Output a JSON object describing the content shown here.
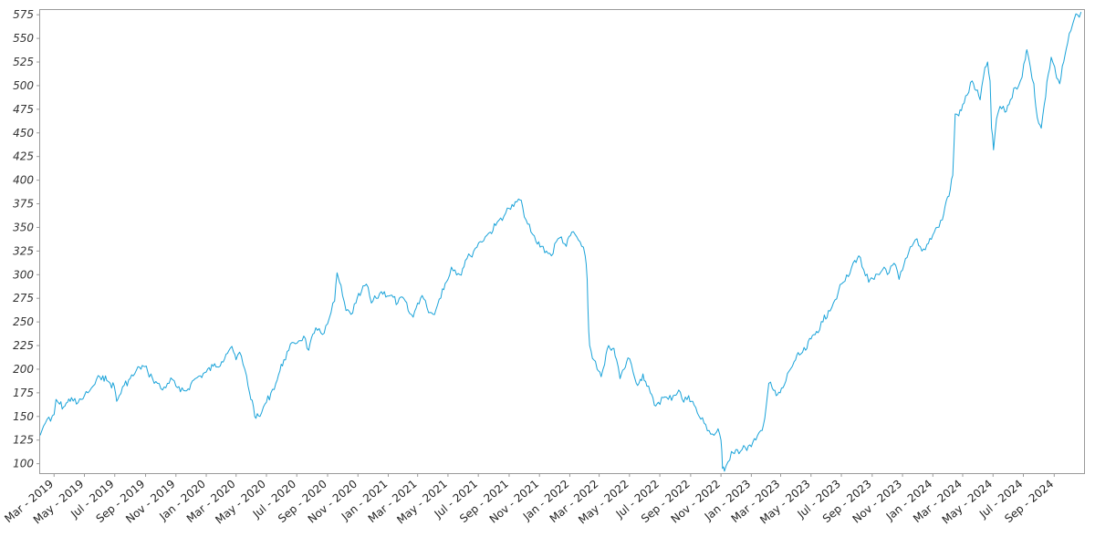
{
  "chart_data": {
    "type": "line",
    "title": "",
    "xlabel": "",
    "ylabel": "",
    "grid": false,
    "legend": "none",
    "line_color": "#1aa3d9",
    "x_range": [
      "2019-02-01",
      "2024-10-31"
    ],
    "ylim": [
      90,
      580
    ],
    "y_ticks": [
      100,
      125,
      150,
      175,
      200,
      225,
      250,
      275,
      300,
      325,
      350,
      375,
      400,
      425,
      450,
      475,
      500,
      525,
      550,
      575
    ],
    "x_ticks": [
      {
        "date": "2019-03-01",
        "label": "Mar - 2019"
      },
      {
        "date": "2019-05-01",
        "label": "May - 2019"
      },
      {
        "date": "2019-07-01",
        "label": "Jul - 2019"
      },
      {
        "date": "2019-09-01",
        "label": "Sep - 2019"
      },
      {
        "date": "2019-11-01",
        "label": "Nov - 2019"
      },
      {
        "date": "2020-01-01",
        "label": "Jan - 2020"
      },
      {
        "date": "2020-03-01",
        "label": "Mar - 2020"
      },
      {
        "date": "2020-05-01",
        "label": "May - 2020"
      },
      {
        "date": "2020-07-01",
        "label": "Jul - 2020"
      },
      {
        "date": "2020-09-01",
        "label": "Sep - 2020"
      },
      {
        "date": "2020-11-01",
        "label": "Nov - 2020"
      },
      {
        "date": "2021-01-01",
        "label": "Jan - 2021"
      },
      {
        "date": "2021-03-01",
        "label": "Mar - 2021"
      },
      {
        "date": "2021-05-01",
        "label": "May - 2021"
      },
      {
        "date": "2021-07-01",
        "label": "Jul - 2021"
      },
      {
        "date": "2021-09-01",
        "label": "Sep - 2021"
      },
      {
        "date": "2021-11-01",
        "label": "Nov - 2021"
      },
      {
        "date": "2022-01-01",
        "label": "Jan - 2022"
      },
      {
        "date": "2022-03-01",
        "label": "Mar - 2022"
      },
      {
        "date": "2022-05-01",
        "label": "May - 2022"
      },
      {
        "date": "2022-07-01",
        "label": "Jul - 2022"
      },
      {
        "date": "2022-09-01",
        "label": "Sep - 2022"
      },
      {
        "date": "2022-11-01",
        "label": "Nov - 2022"
      },
      {
        "date": "2023-01-01",
        "label": "Jan - 2023"
      },
      {
        "date": "2023-03-01",
        "label": "Mar - 2023"
      },
      {
        "date": "2023-05-01",
        "label": "May - 2023"
      },
      {
        "date": "2023-07-01",
        "label": "Jul - 2023"
      },
      {
        "date": "2023-09-01",
        "label": "Sep - 2023"
      },
      {
        "date": "2023-11-01",
        "label": "Nov - 2023"
      },
      {
        "date": "2024-01-01",
        "label": "Jan - 2024"
      },
      {
        "date": "2024-03-01",
        "label": "Mar - 2024"
      },
      {
        "date": "2024-05-01",
        "label": "May - 2024"
      },
      {
        "date": "2024-07-01",
        "label": "Jul - 2024"
      },
      {
        "date": "2024-09-01",
        "label": "Sep - 2024"
      }
    ],
    "series": [
      {
        "points": [
          [
            "2019-02-01",
            130
          ],
          [
            "2019-02-08",
            140
          ],
          [
            "2019-02-15",
            147
          ],
          [
            "2019-02-22",
            145
          ],
          [
            "2019-03-01",
            152
          ],
          [
            "2019-03-05",
            168
          ],
          [
            "2019-03-12",
            163
          ],
          [
            "2019-03-20",
            160
          ],
          [
            "2019-03-28",
            165
          ],
          [
            "2019-04-05",
            170
          ],
          [
            "2019-04-15",
            163
          ],
          [
            "2019-04-25",
            168
          ],
          [
            "2019-05-01",
            172
          ],
          [
            "2019-05-08",
            175
          ],
          [
            "2019-05-15",
            180
          ],
          [
            "2019-05-22",
            184
          ],
          [
            "2019-06-01",
            192
          ],
          [
            "2019-06-07",
            193
          ],
          [
            "2019-06-15",
            188
          ],
          [
            "2019-06-22",
            185
          ],
          [
            "2019-06-30",
            182
          ],
          [
            "2019-07-05",
            166
          ],
          [
            "2019-07-10",
            172
          ],
          [
            "2019-07-20",
            183
          ],
          [
            "2019-08-01",
            190
          ],
          [
            "2019-08-10",
            195
          ],
          [
            "2019-08-20",
            202
          ],
          [
            "2019-08-28",
            203
          ],
          [
            "2019-09-05",
            198
          ],
          [
            "2019-09-15",
            190
          ],
          [
            "2019-09-25",
            185
          ],
          [
            "2019-10-05",
            178
          ],
          [
            "2019-10-15",
            185
          ],
          [
            "2019-10-25",
            189
          ],
          [
            "2019-11-01",
            182
          ],
          [
            "2019-11-10",
            176
          ],
          [
            "2019-11-20",
            177
          ],
          [
            "2019-12-01",
            184
          ],
          [
            "2019-12-10",
            190
          ],
          [
            "2019-12-20",
            193
          ],
          [
            "2020-01-01",
            197
          ],
          [
            "2020-01-15",
            203
          ],
          [
            "2020-02-01",
            208
          ],
          [
            "2020-02-10",
            216
          ],
          [
            "2020-02-18",
            222
          ],
          [
            "2020-02-25",
            218
          ],
          [
            "2020-03-01",
            210
          ],
          [
            "2020-03-08",
            218
          ],
          [
            "2020-03-15",
            205
          ],
          [
            "2020-03-22",
            193
          ],
          [
            "2020-03-28",
            175
          ],
          [
            "2020-04-05",
            160
          ],
          [
            "2020-04-10",
            148
          ],
          [
            "2020-04-18",
            150
          ],
          [
            "2020-04-25",
            160
          ],
          [
            "2020-05-01",
            165
          ],
          [
            "2020-05-10",
            175
          ],
          [
            "2020-05-20",
            185
          ],
          [
            "2020-05-28",
            198
          ],
          [
            "2020-06-05",
            210
          ],
          [
            "2020-06-15",
            220
          ],
          [
            "2020-06-25",
            228
          ],
          [
            "2020-07-05",
            230
          ],
          [
            "2020-07-15",
            235
          ],
          [
            "2020-07-25",
            220
          ],
          [
            "2020-08-05",
            238
          ],
          [
            "2020-08-15",
            243
          ],
          [
            "2020-08-25",
            238
          ],
          [
            "2020-09-01",
            248
          ],
          [
            "2020-09-08",
            260
          ],
          [
            "2020-09-15",
            272
          ],
          [
            "2020-09-20",
            302
          ],
          [
            "2020-09-25",
            292
          ],
          [
            "2020-10-01",
            278
          ],
          [
            "2020-10-08",
            262
          ],
          [
            "2020-10-18",
            258
          ],
          [
            "2020-10-28",
            270
          ],
          [
            "2020-11-08",
            282
          ],
          [
            "2020-11-18",
            290
          ],
          [
            "2020-11-28",
            270
          ],
          [
            "2020-12-08",
            275
          ],
          [
            "2020-12-18",
            282
          ],
          [
            "2021-01-05",
            278
          ],
          [
            "2021-01-20",
            270
          ],
          [
            "2021-02-01",
            275
          ],
          [
            "2021-02-10",
            262
          ],
          [
            "2021-02-20",
            255
          ],
          [
            "2021-03-01",
            270
          ],
          [
            "2021-03-10",
            278
          ],
          [
            "2021-03-20",
            265
          ],
          [
            "2021-04-01",
            258
          ],
          [
            "2021-04-10",
            268
          ],
          [
            "2021-04-20",
            285
          ],
          [
            "2021-05-01",
            295
          ],
          [
            "2021-05-08",
            308
          ],
          [
            "2021-05-15",
            305
          ],
          [
            "2021-05-25",
            300
          ],
          [
            "2021-06-05",
            315
          ],
          [
            "2021-06-15",
            320
          ],
          [
            "2021-06-25",
            328
          ],
          [
            "2021-07-05",
            335
          ],
          [
            "2021-07-15",
            340
          ],
          [
            "2021-07-25",
            345
          ],
          [
            "2021-08-05",
            352
          ],
          [
            "2021-08-15",
            360
          ],
          [
            "2021-08-25",
            365
          ],
          [
            "2021-09-01",
            370
          ],
          [
            "2021-09-10",
            372
          ],
          [
            "2021-09-20",
            380
          ],
          [
            "2021-09-28",
            372
          ],
          [
            "2021-10-05",
            358
          ],
          [
            "2021-10-15",
            345
          ],
          [
            "2021-10-25",
            335
          ],
          [
            "2021-11-05",
            330
          ],
          [
            "2021-11-15",
            325
          ],
          [
            "2021-11-25",
            320
          ],
          [
            "2021-12-05",
            335
          ],
          [
            "2021-12-15",
            340
          ],
          [
            "2021-12-25",
            330
          ],
          [
            "2022-01-05",
            345
          ],
          [
            "2022-01-15",
            340
          ],
          [
            "2022-01-25",
            330
          ],
          [
            "2022-02-01",
            320
          ],
          [
            "2022-02-05",
            295
          ],
          [
            "2022-02-08",
            240
          ],
          [
            "2022-02-10",
            225
          ],
          [
            "2022-02-18",
            210
          ],
          [
            "2022-02-25",
            200
          ],
          [
            "2022-03-05",
            192
          ],
          [
            "2022-03-12",
            205
          ],
          [
            "2022-03-20",
            225
          ],
          [
            "2022-03-28",
            222
          ],
          [
            "2022-04-05",
            210
          ],
          [
            "2022-04-12",
            190
          ],
          [
            "2022-04-20",
            200
          ],
          [
            "2022-04-28",
            212
          ],
          [
            "2022-05-05",
            205
          ],
          [
            "2022-05-12",
            190
          ],
          [
            "2022-05-20",
            185
          ],
          [
            "2022-05-28",
            195
          ],
          [
            "2022-06-05",
            182
          ],
          [
            "2022-06-12",
            175
          ],
          [
            "2022-06-20",
            162
          ],
          [
            "2022-06-28",
            165
          ],
          [
            "2022-07-08",
            170
          ],
          [
            "2022-07-18",
            168
          ],
          [
            "2022-07-28",
            172
          ],
          [
            "2022-08-08",
            178
          ],
          [
            "2022-08-18",
            165
          ],
          [
            "2022-08-28",
            172
          ],
          [
            "2022-09-08",
            162
          ],
          [
            "2022-09-18",
            150
          ],
          [
            "2022-09-28",
            143
          ],
          [
            "2022-10-08",
            135
          ],
          [
            "2022-10-18",
            130
          ],
          [
            "2022-10-26",
            137
          ],
          [
            "2022-11-01",
            125
          ],
          [
            "2022-11-04",
            95
          ],
          [
            "2022-11-08",
            92
          ],
          [
            "2022-11-15",
            102
          ],
          [
            "2022-11-22",
            113
          ],
          [
            "2022-12-01",
            115
          ],
          [
            "2022-12-10",
            113
          ],
          [
            "2022-12-20",
            117
          ],
          [
            "2023-01-01",
            118
          ],
          [
            "2023-01-10",
            125
          ],
          [
            "2023-01-20",
            135
          ],
          [
            "2023-01-28",
            148
          ],
          [
            "2023-02-05",
            185
          ],
          [
            "2023-02-12",
            180
          ],
          [
            "2023-02-20",
            172
          ],
          [
            "2023-02-28",
            175
          ],
          [
            "2023-03-08",
            183
          ],
          [
            "2023-03-18",
            198
          ],
          [
            "2023-03-28",
            208
          ],
          [
            "2023-04-08",
            215
          ],
          [
            "2023-04-20",
            220
          ],
          [
            "2023-05-01",
            232
          ],
          [
            "2023-05-12",
            240
          ],
          [
            "2023-05-25",
            250
          ],
          [
            "2023-06-05",
            262
          ],
          [
            "2023-06-15",
            270
          ],
          [
            "2023-06-25",
            282
          ],
          [
            "2023-07-05",
            292
          ],
          [
            "2023-07-15",
            298
          ],
          [
            "2023-07-28",
            315
          ],
          [
            "2023-08-05",
            320
          ],
          [
            "2023-08-15",
            305
          ],
          [
            "2023-08-25",
            292
          ],
          [
            "2023-09-05",
            295
          ],
          [
            "2023-09-15",
            300
          ],
          [
            "2023-09-25",
            308
          ],
          [
            "2023-10-05",
            302
          ],
          [
            "2023-10-15",
            312
          ],
          [
            "2023-10-25",
            295
          ],
          [
            "2023-11-01",
            305
          ],
          [
            "2023-11-10",
            318
          ],
          [
            "2023-11-20",
            330
          ],
          [
            "2023-11-30",
            338
          ],
          [
            "2023-12-10",
            325
          ],
          [
            "2023-12-20",
            332
          ],
          [
            "2024-01-01",
            342
          ],
          [
            "2024-01-10",
            350
          ],
          [
            "2024-01-20",
            358
          ],
          [
            "2024-01-28",
            378
          ],
          [
            "2024-02-05",
            390
          ],
          [
            "2024-02-10",
            405
          ],
          [
            "2024-02-15",
            470
          ],
          [
            "2024-02-22",
            468
          ],
          [
            "2024-03-01",
            480
          ],
          [
            "2024-03-10",
            490
          ],
          [
            "2024-03-20",
            505
          ],
          [
            "2024-03-28",
            495
          ],
          [
            "2024-04-05",
            485
          ],
          [
            "2024-04-12",
            510
          ],
          [
            "2024-04-20",
            525
          ],
          [
            "2024-04-25",
            505
          ],
          [
            "2024-04-28",
            455
          ],
          [
            "2024-05-02",
            432
          ],
          [
            "2024-05-08",
            465
          ],
          [
            "2024-05-15",
            478
          ],
          [
            "2024-05-25",
            472
          ],
          [
            "2024-06-05",
            485
          ],
          [
            "2024-06-15",
            498
          ],
          [
            "2024-06-25",
            505
          ],
          [
            "2024-07-05",
            528
          ],
          [
            "2024-07-08",
            538
          ],
          [
            "2024-07-15",
            520
          ],
          [
            "2024-07-22",
            502
          ],
          [
            "2024-07-26",
            478
          ],
          [
            "2024-08-01",
            460
          ],
          [
            "2024-08-06",
            455
          ],
          [
            "2024-08-12",
            480
          ],
          [
            "2024-08-20",
            512
          ],
          [
            "2024-08-26",
            530
          ],
          [
            "2024-09-02",
            520
          ],
          [
            "2024-09-06",
            508
          ],
          [
            "2024-09-12",
            502
          ],
          [
            "2024-09-20",
            525
          ],
          [
            "2024-09-28",
            545
          ],
          [
            "2024-10-08",
            565
          ],
          [
            "2024-10-18",
            575
          ],
          [
            "2024-10-25",
            578
          ]
        ]
      }
    ]
  }
}
